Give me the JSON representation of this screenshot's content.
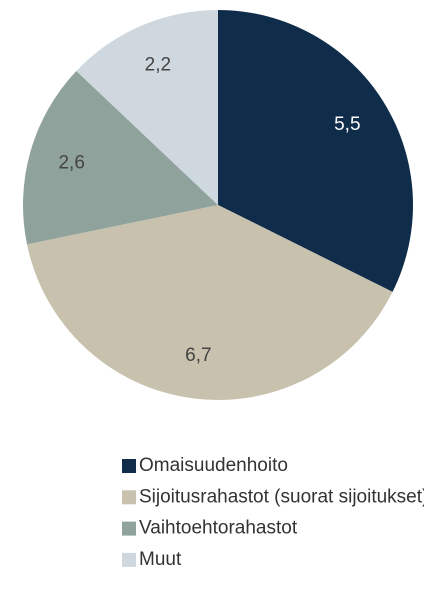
{
  "chart_data": {
    "type": "pie",
    "categories": [
      "Omaisuudenhoito",
      "Sijoitusrahastot (suorat sijoitukset)",
      "Vaihtoehtorahastot",
      "Muut"
    ],
    "values": [
      5.5,
      6.7,
      2.6,
      2.2
    ],
    "value_labels": [
      "5,5",
      "6,7",
      "2,6",
      "2,2"
    ],
    "colors": [
      "#0f2d4a",
      "#c8c1ad",
      "#8fa39c",
      "#cfd8de"
    ],
    "legend": "bottom"
  }
}
